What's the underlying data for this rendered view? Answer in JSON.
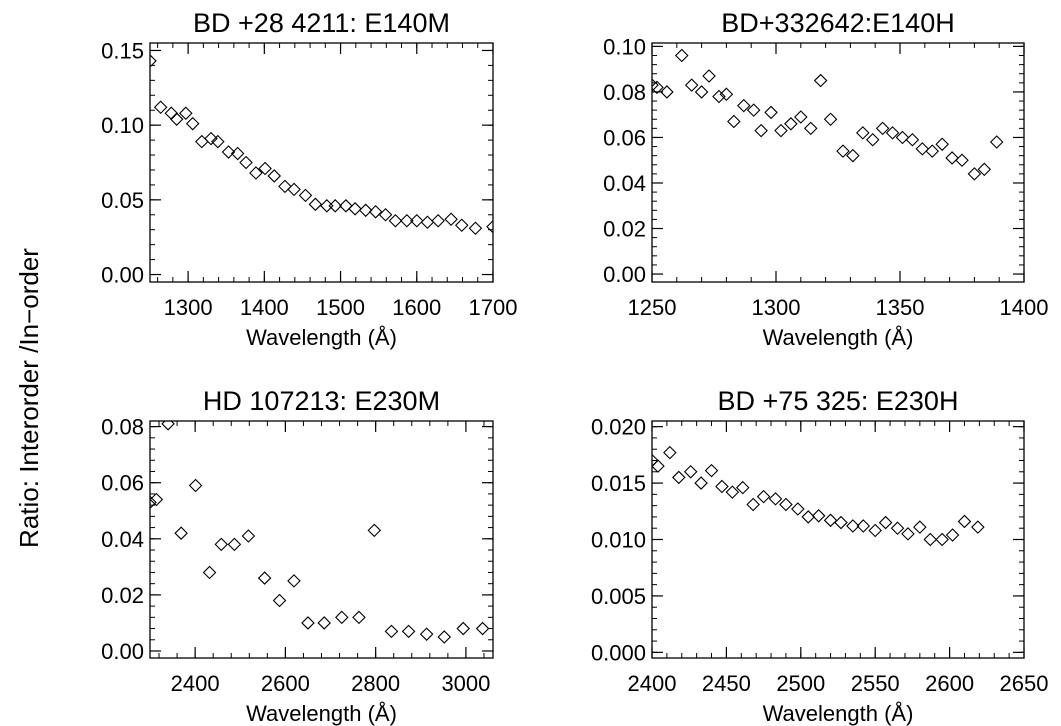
{
  "figure": {
    "ylabel": "Ratio:  Interorder /In−order"
  },
  "chart_data": [
    {
      "type": "scatter",
      "title": "BD +28 4211: E140M",
      "xlabel": "Wavelength (Å)",
      "xlim": [
        1250,
        1700
      ],
      "ylim": [
        -0.005,
        0.155
      ],
      "xticks": [
        1300,
        1400,
        1500,
        1600,
        1700
      ],
      "xtick_labels": [
        "1300",
        "1400",
        "1500",
        "1600",
        "1700"
      ],
      "yticks": [
        0.0,
        0.05,
        0.1,
        0.15
      ],
      "ytick_labels": [
        "0.00",
        "0.05",
        "0.10",
        "0.15"
      ],
      "marker": "diamond",
      "points": [
        [
          1250,
          0.143
        ],
        [
          1264,
          0.112
        ],
        [
          1278,
          0.108
        ],
        [
          1285,
          0.104
        ],
        [
          1297,
          0.108
        ],
        [
          1306,
          0.101
        ],
        [
          1318,
          0.089
        ],
        [
          1330,
          0.091
        ],
        [
          1339,
          0.089
        ],
        [
          1353,
          0.082
        ],
        [
          1365,
          0.081
        ],
        [
          1376,
          0.075
        ],
        [
          1389,
          0.068
        ],
        [
          1401,
          0.071
        ],
        [
          1413,
          0.066
        ],
        [
          1427,
          0.059
        ],
        [
          1439,
          0.057
        ],
        [
          1454,
          0.053
        ],
        [
          1467,
          0.047
        ],
        [
          1482,
          0.046
        ],
        [
          1493,
          0.046
        ],
        [
          1507,
          0.046
        ],
        [
          1519,
          0.044
        ],
        [
          1533,
          0.043
        ],
        [
          1546,
          0.042
        ],
        [
          1559,
          0.04
        ],
        [
          1572,
          0.036
        ],
        [
          1587,
          0.036
        ],
        [
          1600,
          0.036
        ],
        [
          1614,
          0.035
        ],
        [
          1628,
          0.036
        ],
        [
          1645,
          0.037
        ],
        [
          1659,
          0.033
        ],
        [
          1677,
          0.031
        ],
        [
          1700,
          0.032
        ]
      ]
    },
    {
      "type": "scatter",
      "title": "BD+332642:E140H",
      "xlabel": "Wavelength (Å)",
      "xlim": [
        1250,
        1400
      ],
      "ylim": [
        -0.0035,
        0.1015
      ],
      "xticks": [
        1250,
        1300,
        1350,
        1400
      ],
      "xtick_labels": [
        "1250",
        "1300",
        "1350",
        "1400"
      ],
      "yticks": [
        0.0,
        0.02,
        0.04,
        0.06,
        0.08,
        0.1
      ],
      "ytick_labels": [
        "0.00",
        "0.02",
        "0.04",
        "0.06",
        "0.08",
        "0.10"
      ],
      "marker": "diamond",
      "points": [
        [
          1250,
          0.083
        ],
        [
          1252,
          0.082
        ],
        [
          1256,
          0.08
        ],
        [
          1262,
          0.096
        ],
        [
          1266,
          0.083
        ],
        [
          1270,
          0.08
        ],
        [
          1273,
          0.087
        ],
        [
          1277,
          0.078
        ],
        [
          1280,
          0.079
        ],
        [
          1283,
          0.067
        ],
        [
          1287,
          0.074
        ],
        [
          1291,
          0.072
        ],
        [
          1294,
          0.063
        ],
        [
          1298,
          0.071
        ],
        [
          1302,
          0.063
        ],
        [
          1306,
          0.066
        ],
        [
          1310,
          0.069
        ],
        [
          1314,
          0.064
        ],
        [
          1318,
          0.085
        ],
        [
          1322,
          0.068
        ],
        [
          1327,
          0.054
        ],
        [
          1331,
          0.052
        ],
        [
          1335,
          0.062
        ],
        [
          1339,
          0.059
        ],
        [
          1343,
          0.064
        ],
        [
          1347,
          0.062
        ],
        [
          1351,
          0.06
        ],
        [
          1355,
          0.059
        ],
        [
          1359,
          0.055
        ],
        [
          1363,
          0.054
        ],
        [
          1367,
          0.057
        ],
        [
          1371,
          0.051
        ],
        [
          1375,
          0.05
        ],
        [
          1380,
          0.044
        ],
        [
          1384,
          0.046
        ],
        [
          1389,
          0.058
        ]
      ]
    },
    {
      "type": "scatter",
      "title": "HD 107213: E230M",
      "xlabel": "Wavelength (Å)",
      "xlim": [
        2300,
        3060
      ],
      "ylim": [
        -0.0025,
        0.082
      ],
      "xticks": [
        2400,
        2600,
        2800,
        3000
      ],
      "xtick_labels": [
        "2400",
        "2600",
        "2800",
        "3000"
      ],
      "yticks": [
        0.0,
        0.02,
        0.04,
        0.06,
        0.08
      ],
      "ytick_labels": [
        "0.00",
        "0.02",
        "0.04",
        "0.06",
        "0.08"
      ],
      "marker": "diamond",
      "points": [
        [
          2300,
          0.053
        ],
        [
          2314,
          0.054
        ],
        [
          2340,
          0.081
        ],
        [
          2369,
          0.042
        ],
        [
          2401,
          0.059
        ],
        [
          2432,
          0.028
        ],
        [
          2458,
          0.038
        ],
        [
          2487,
          0.038
        ],
        [
          2518,
          0.041
        ],
        [
          2554,
          0.026
        ],
        [
          2587,
          0.018
        ],
        [
          2619,
          0.025
        ],
        [
          2650,
          0.01
        ],
        [
          2686,
          0.01
        ],
        [
          2725,
          0.012
        ],
        [
          2763,
          0.012
        ],
        [
          2797,
          0.043
        ],
        [
          2835,
          0.007
        ],
        [
          2873,
          0.007
        ],
        [
          2913,
          0.006
        ],
        [
          2952,
          0.005
        ],
        [
          2994,
          0.008
        ],
        [
          3037,
          0.008
        ]
      ]
    },
    {
      "type": "scatter",
      "title": "BD +75 325:  E230H",
      "xlabel": "Wavelength (Å)",
      "xlim": [
        2400,
        2650
      ],
      "ylim": [
        -0.0005,
        0.0205
      ],
      "xticks": [
        2400,
        2450,
        2500,
        2550,
        2600,
        2650
      ],
      "xtick_labels": [
        "2400",
        "2450",
        "2500",
        "2550",
        "2600",
        "2650"
      ],
      "yticks": [
        0.0,
        0.005,
        0.01,
        0.015,
        0.02
      ],
      "ytick_labels": [
        "0.000",
        "0.005",
        "0.010",
        "0.015",
        "0.020"
      ],
      "marker": "diamond",
      "points": [
        [
          2400,
          0.017
        ],
        [
          2404,
          0.0165
        ],
        [
          2412,
          0.0177
        ],
        [
          2418,
          0.0155
        ],
        [
          2426,
          0.016
        ],
        [
          2433,
          0.015
        ],
        [
          2440,
          0.0161
        ],
        [
          2447,
          0.0147
        ],
        [
          2454,
          0.0142
        ],
        [
          2461,
          0.0146
        ],
        [
          2468,
          0.0131
        ],
        [
          2475,
          0.0138
        ],
        [
          2483,
          0.0136
        ],
        [
          2490,
          0.0131
        ],
        [
          2498,
          0.0127
        ],
        [
          2505,
          0.012
        ],
        [
          2512,
          0.0121
        ],
        [
          2520,
          0.0117
        ],
        [
          2527,
          0.0115
        ],
        [
          2535,
          0.0112
        ],
        [
          2542,
          0.0112
        ],
        [
          2550,
          0.0108
        ],
        [
          2557,
          0.0115
        ],
        [
          2565,
          0.011
        ],
        [
          2572,
          0.0105
        ],
        [
          2580,
          0.0111
        ],
        [
          2587,
          0.01
        ],
        [
          2595,
          0.01
        ],
        [
          2602,
          0.0104
        ],
        [
          2610,
          0.0116
        ],
        [
          2619,
          0.0111
        ]
      ]
    }
  ]
}
